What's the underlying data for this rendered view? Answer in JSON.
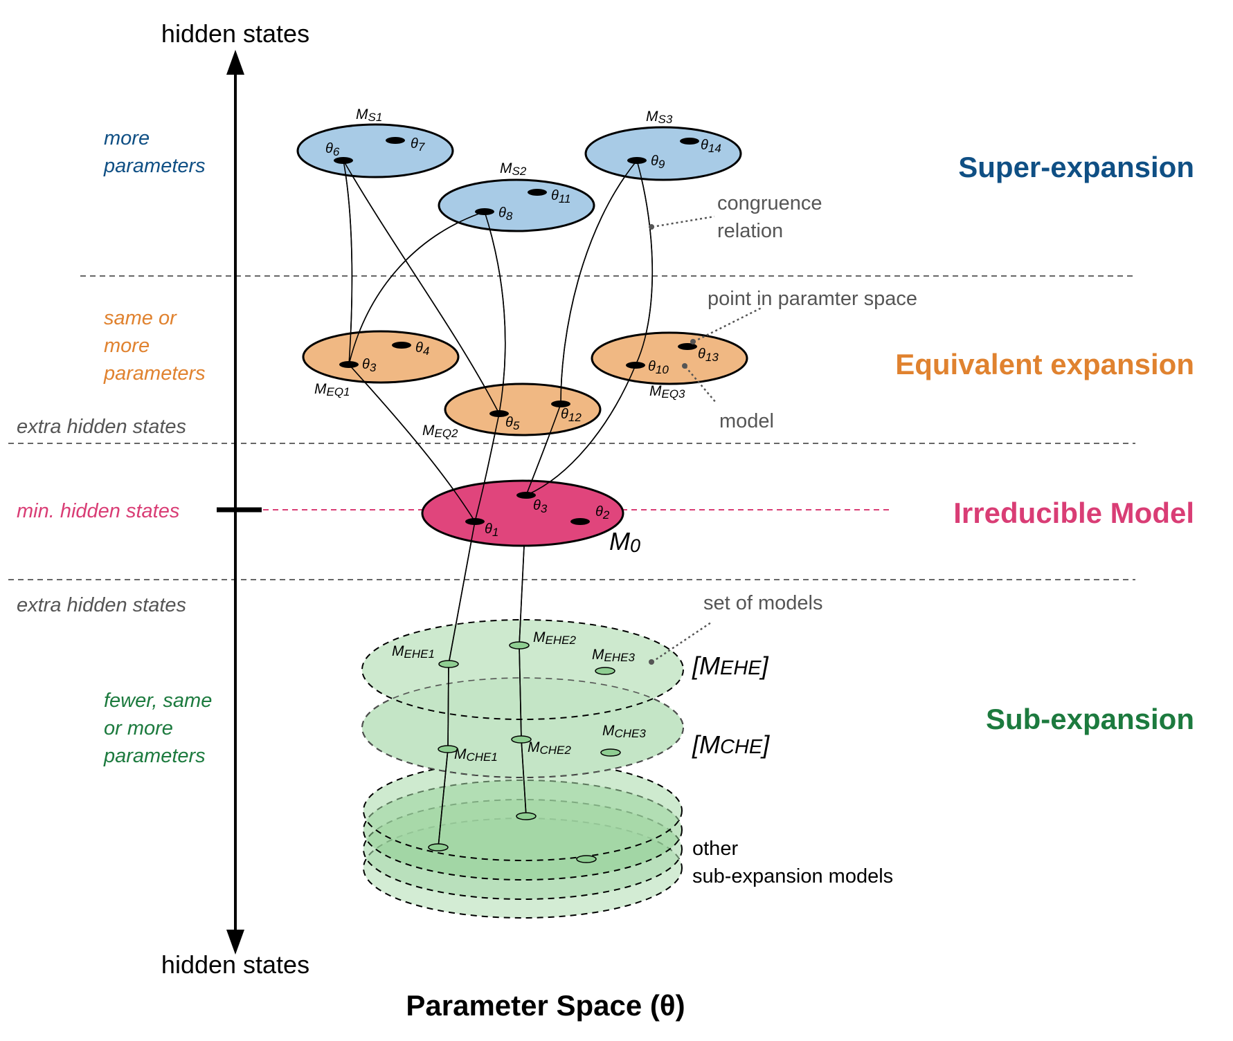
{
  "axis": {
    "top_label": "hidden states",
    "bottom_label": "hidden states",
    "x_label": "Parameter Space (θ)"
  },
  "left_labels": {
    "more_parameters": [
      "more",
      "parameters"
    ],
    "same_or_more": [
      "same or",
      "more",
      "parameters"
    ],
    "extra_hidden_upper": "extra hidden states",
    "min_hidden": "min. hidden states",
    "extra_hidden_lower": "extra hidden states",
    "fewer_same_more": [
      "fewer, same",
      "or more",
      "parameters"
    ]
  },
  "sections": {
    "super": "Super-expansion",
    "equivalent": "Equivalent expansion",
    "irreducible": "Irreducible Model",
    "sub": "Sub-expansion"
  },
  "annotations": {
    "congruence": [
      "congruence",
      "relation"
    ],
    "point": "point in paramter space",
    "model": "model",
    "set_of_models": "set of models",
    "other": [
      "other",
      "sub-expansion models"
    ]
  },
  "models": {
    "ms1": {
      "base": "M",
      "sub": "S1"
    },
    "ms2": {
      "base": "M",
      "sub": "S2"
    },
    "ms3": {
      "base": "M",
      "sub": "S3"
    },
    "meq1": {
      "base": "M",
      "sub": "EQ1"
    },
    "meq2": {
      "base": "M",
      "sub": "EQ2"
    },
    "meq3": {
      "base": "M",
      "sub": "EQ3"
    },
    "m0": {
      "base": "M",
      "sub": "0"
    },
    "mehe1": {
      "base": "M",
      "sub": "EHE1"
    },
    "mehe2": {
      "base": "M",
      "sub": "EHE2"
    },
    "mehe3": {
      "base": "M",
      "sub": "EHE3"
    },
    "mche1": {
      "base": "M",
      "sub": "CHE1"
    },
    "mche2": {
      "base": "M",
      "sub": "CHE2"
    },
    "mche3": {
      "base": "M",
      "sub": "CHE3"
    },
    "set_ehe": {
      "open": "[M",
      "sub": "EHE",
      "close": "]"
    },
    "set_che": {
      "open": "[M",
      "sub": "CHE",
      "close": "]"
    }
  },
  "thetas": {
    "t1": {
      "base": "θ",
      "sub": "1"
    },
    "t2": {
      "base": "θ",
      "sub": "2"
    },
    "t3a": {
      "base": "θ",
      "sub": "3"
    },
    "t3b": {
      "base": "θ",
      "sub": "3"
    },
    "t4": {
      "base": "θ",
      "sub": "4"
    },
    "t5": {
      "base": "θ",
      "sub": "5"
    },
    "t6": {
      "base": "θ",
      "sub": "6"
    },
    "t7": {
      "base": "θ",
      "sub": "7"
    },
    "t8": {
      "base": "θ",
      "sub": "8"
    },
    "t9": {
      "base": "θ",
      "sub": "9"
    },
    "t10": {
      "base": "θ",
      "sub": "10"
    },
    "t11": {
      "base": "θ",
      "sub": "11"
    },
    "t12": {
      "base": "θ",
      "sub": "12"
    },
    "t13": {
      "base": "θ",
      "sub": "13"
    },
    "t14": {
      "base": "θ",
      "sub": "14"
    }
  },
  "colors": {
    "super": "#0f4f84",
    "equivalent": "#e0822f",
    "irreducible": "#d93d75",
    "sub": "#1c7a3e",
    "super_fill": "#a8cbe6",
    "equivalent_fill": "#f0b883",
    "irreducible_fill": "#e0457c",
    "sub_fill": "#c4e5c6",
    "annotation": "#555555"
  }
}
